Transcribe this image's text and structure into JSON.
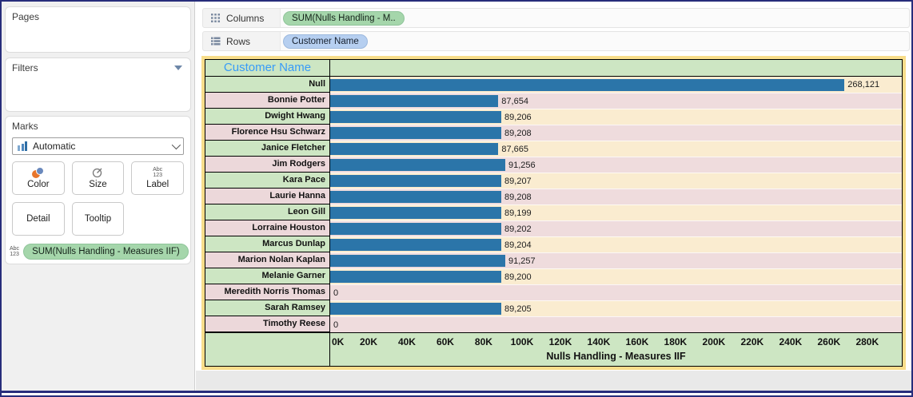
{
  "left_panel": {
    "pages_label": "Pages",
    "filters_label": "Filters",
    "marks": {
      "title": "Marks",
      "mark_type": "Automatic",
      "buttons": {
        "color": "Color",
        "size": "Size",
        "label": "Label",
        "detail": "Detail",
        "tooltip": "Tooltip"
      },
      "abc123_icon_text": "Abc\n123",
      "pill": "SUM(Nulls Handling - Measures IIF)"
    }
  },
  "shelves": {
    "columns_label": "Columns",
    "columns_pill": "SUM(Nulls Handling - M..",
    "rows_label": "Rows",
    "rows_pill": "Customer Name"
  },
  "chart_data": {
    "type": "bar",
    "orientation": "horizontal",
    "title": "Customer Name",
    "xlabel": "Nulls Handling - Measures IIF",
    "categories": [
      "Null",
      "Bonnie Potter",
      "Dwight Hwang",
      "Florence Hsu Schwarz",
      "Janice Fletcher",
      "Jim Rodgers",
      "Kara Pace",
      "Laurie Hanna",
      "Leon Gill",
      "Lorraine Houston",
      "Marcus Dunlap",
      "Marion Nolan Kaplan",
      "Melanie Garner",
      "Meredith Norris Thomas",
      "Sarah Ramsey",
      "Timothy Reese"
    ],
    "values": [
      268121,
      87654,
      89206,
      89208,
      87665,
      91256,
      89207,
      89208,
      89199,
      89202,
      89204,
      91257,
      89200,
      0,
      89205,
      0
    ],
    "value_labels": [
      "268,121",
      "87,654",
      "89,206",
      "89,208",
      "87,665",
      "91,256",
      "89,207",
      "89,208",
      "89,199",
      "89,202",
      "89,204",
      "91,257",
      "89,200",
      "0",
      "89,205",
      "0"
    ],
    "x_ticks": [
      "0K",
      "20K",
      "40K",
      "60K",
      "80K",
      "100K",
      "120K",
      "140K",
      "160K",
      "180K",
      "200K",
      "220K",
      "240K",
      "260K",
      "280K"
    ],
    "x_tick_values": [
      0,
      20000,
      40000,
      60000,
      80000,
      100000,
      120000,
      140000,
      160000,
      180000,
      200000,
      220000,
      240000,
      260000,
      280000
    ],
    "axis_max": 298000,
    "grid": false,
    "legend": "none"
  },
  "colors": {
    "bar": "#2B75A9",
    "band_cream": "#FAECD0",
    "band_pink": "#EFDCDD",
    "label_green": "#CDE6C3",
    "label_pink": "#ECD8DA",
    "axis_bg": "#CDE6C3",
    "frame_yellow": "#F8DD8A",
    "header_text": "#379BF8",
    "pill_green": "#A5D6AB",
    "pill_blue": "#B6CFF0",
    "window_border": "#272D7B"
  }
}
